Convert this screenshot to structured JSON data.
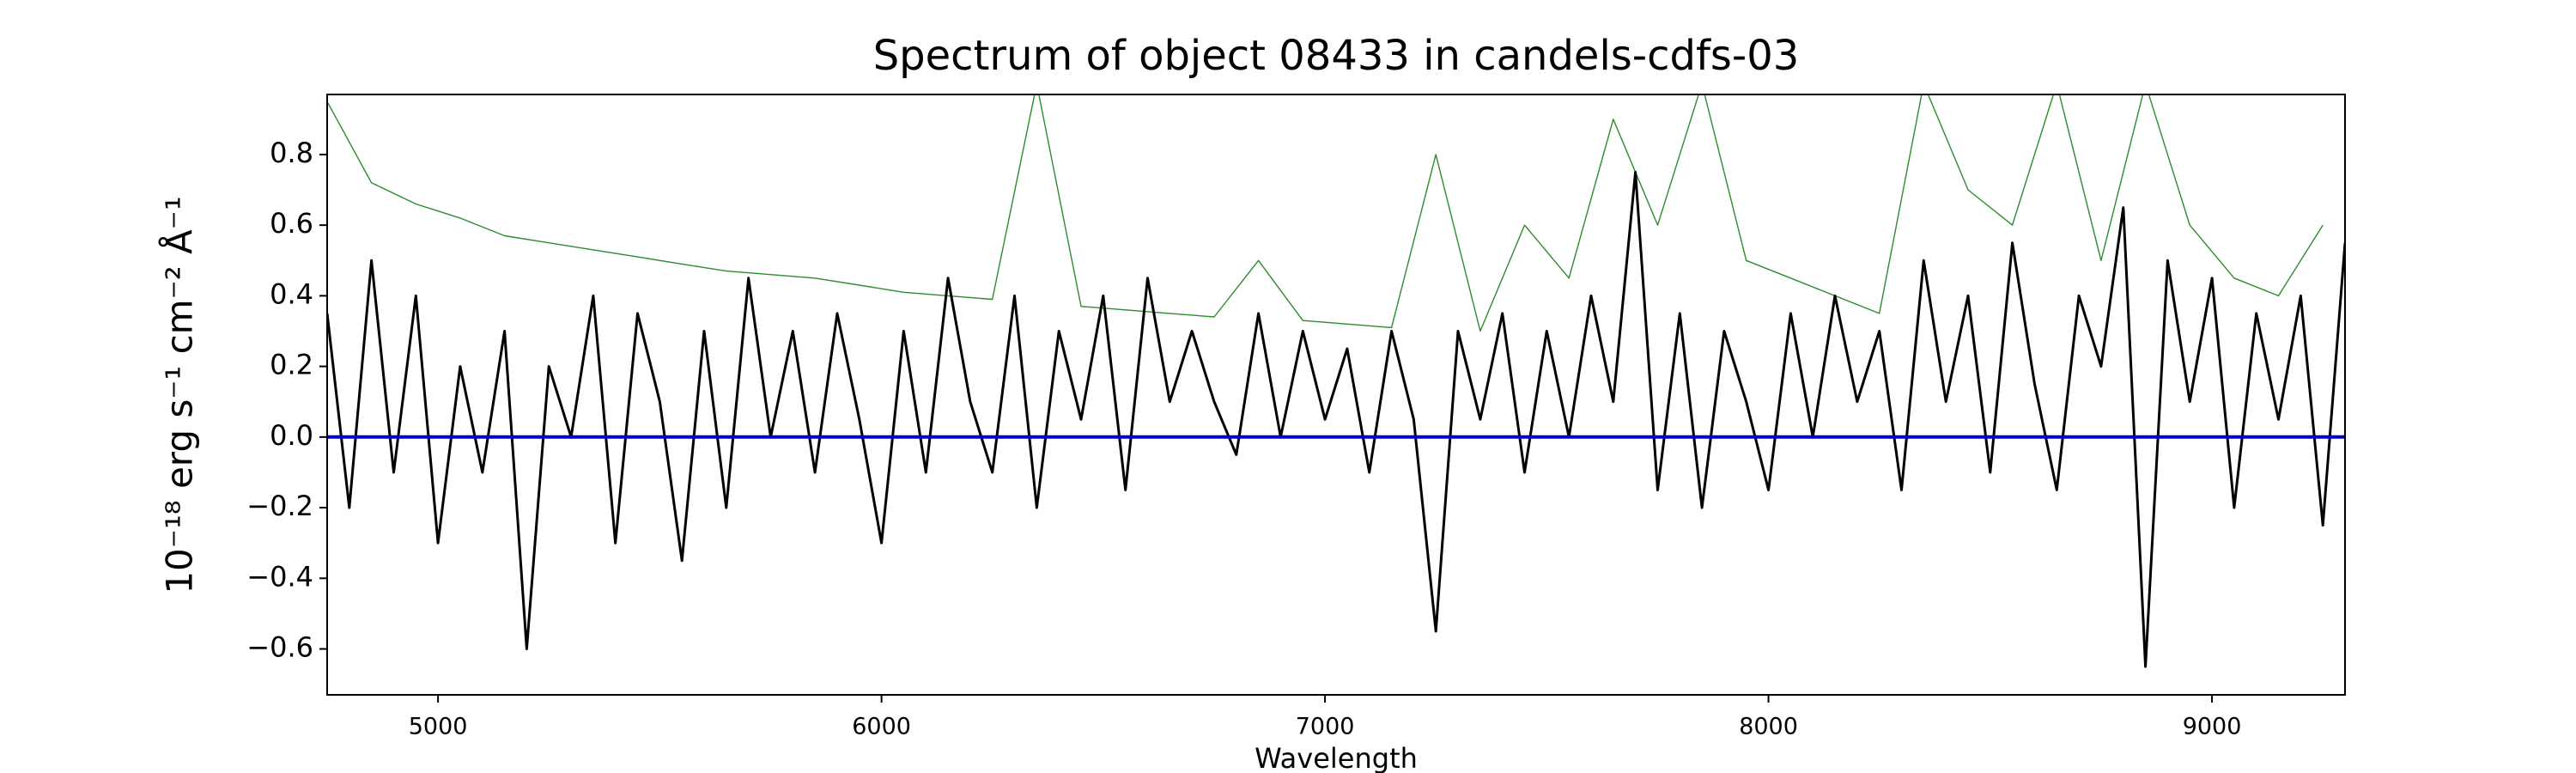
{
  "chart_data": {
    "type": "line",
    "title": "Spectrum of object 08433 in candels-cdfs-03",
    "xlabel": "Wavelength",
    "ylabel": "10⁻¹⁸ erg s⁻¹ cm⁻² Å⁻¹",
    "xlim": [
      4750,
      9300
    ],
    "ylim": [
      -0.73,
      0.97
    ],
    "xticks": [
      5000,
      6000,
      7000,
      8000,
      9000
    ],
    "yticks": [
      {
        "value": -0.6,
        "label": "−0.6"
      },
      {
        "value": -0.4,
        "label": "−0.4"
      },
      {
        "value": -0.2,
        "label": "−0.2"
      },
      {
        "value": 0,
        "label": "0.0"
      },
      0.2,
      0.4,
      0.6,
      0.8
    ],
    "series": [
      {
        "color": "#2e8b2e",
        "width": 1.4,
        "x": [
          4750,
          4850,
          4950,
          5050,
          5150,
          5250,
          5350,
          5450,
          5550,
          5650,
          5750,
          5850,
          5950,
          6050,
          6150,
          6250,
          6350,
          6450,
          6550,
          6650,
          6750,
          6850,
          6950,
          7050,
          7150,
          7250,
          7350,
          7450,
          7550,
          7650,
          7750,
          7850,
          7950,
          8050,
          8150,
          8250,
          8350,
          8450,
          8550,
          8650,
          8750,
          8850,
          8950,
          9050,
          9150,
          9250
        ],
        "values": [
          0.95,
          0.72,
          0.66,
          0.62,
          0.57,
          0.55,
          0.53,
          0.51,
          0.49,
          0.47,
          0.46,
          0.45,
          0.43,
          0.41,
          0.4,
          0.39,
          1.0,
          0.37,
          0.36,
          0.35,
          0.34,
          0.5,
          0.33,
          0.32,
          0.31,
          0.8,
          0.3,
          0.6,
          0.45,
          0.9,
          0.6,
          1.0,
          0.5,
          0.45,
          0.4,
          0.35,
          1.0,
          0.7,
          0.6,
          1.0,
          0.5,
          1.0,
          0.6,
          0.45,
          0.4,
          0.6
        ]
      },
      {
        "color": "#000000",
        "width": 3,
        "x": [
          4750,
          4800,
          4850,
          4900,
          4950,
          5000,
          5050,
          5100,
          5150,
          5200,
          5250,
          5300,
          5350,
          5400,
          5450,
          5500,
          5550,
          5600,
          5650,
          5700,
          5750,
          5800,
          5850,
          5900,
          5950,
          6000,
          6050,
          6100,
          6150,
          6200,
          6250,
          6300,
          6350,
          6400,
          6450,
          6500,
          6550,
          6600,
          6650,
          6700,
          6750,
          6800,
          6850,
          6900,
          6950,
          7000,
          7050,
          7100,
          7150,
          7200,
          7250,
          7300,
          7350,
          7400,
          7450,
          7500,
          7550,
          7600,
          7650,
          7700,
          7750,
          7800,
          7850,
          7900,
          7950,
          8000,
          8050,
          8100,
          8150,
          8200,
          8250,
          8300,
          8350,
          8400,
          8450,
          8500,
          8550,
          8600,
          8650,
          8700,
          8750,
          8800,
          8850,
          8900,
          8950,
          9000,
          9050,
          9100,
          9150,
          9200,
          9250,
          9300
        ],
        "values": [
          0.35,
          -0.2,
          0.5,
          -0.1,
          0.4,
          -0.3,
          0.2,
          -0.1,
          0.3,
          -0.6,
          0.2,
          0.0,
          0.4,
          -0.3,
          0.35,
          0.1,
          -0.35,
          0.3,
          -0.2,
          0.45,
          0.0,
          0.3,
          -0.1,
          0.35,
          0.05,
          -0.3,
          0.3,
          -0.1,
          0.45,
          0.1,
          -0.1,
          0.4,
          -0.2,
          0.3,
          0.05,
          0.4,
          -0.15,
          0.45,
          0.1,
          0.3,
          0.1,
          -0.05,
          0.35,
          0.0,
          0.3,
          0.05,
          0.25,
          -0.1,
          0.3,
          0.05,
          -0.55,
          0.3,
          0.05,
          0.35,
          -0.1,
          0.3,
          0.0,
          0.4,
          0.1,
          0.75,
          -0.15,
          0.35,
          -0.2,
          0.3,
          0.1,
          -0.15,
          0.35,
          0.0,
          0.4,
          0.1,
          0.3,
          -0.15,
          0.5,
          0.1,
          0.4,
          -0.1,
          0.55,
          0.15,
          -0.15,
          0.4,
          0.2,
          0.65,
          -0.65,
          0.5,
          0.1,
          0.45,
          -0.2,
          0.35,
          0.05,
          0.4,
          -0.25,
          0.55
        ]
      },
      {
        "color": "#0000cc",
        "width": 4,
        "x": [
          4750,
          9300
        ],
        "values": [
          0,
          0
        ]
      }
    ]
  }
}
